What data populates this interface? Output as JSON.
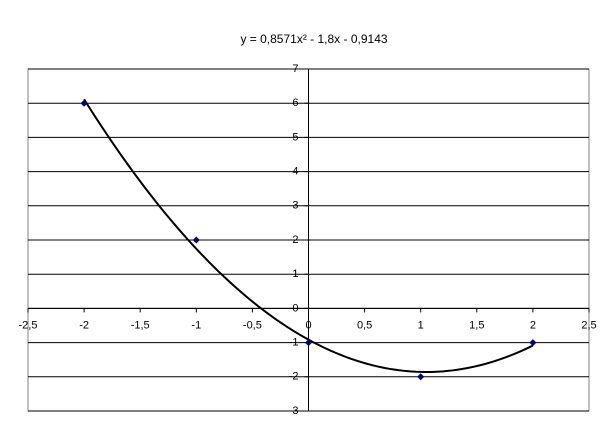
{
  "chart_data": {
    "type": "scatter",
    "title": "y = 0,8571x² - 1,8x - 0,9143",
    "x": [
      -2,
      -1,
      0,
      1,
      2
    ],
    "series": [
      {
        "color": "#000080",
        "values": [
          6,
          2,
          -1,
          -2,
          -1
        ]
      }
    ],
    "trendline": {
      "type": "polynomial",
      "order": 2,
      "color": "#000000"
    },
    "xlim": [
      -2.5,
      2.5
    ],
    "xticks": [
      {
        "value": -2.5,
        "label": "-2,5"
      },
      -2,
      {
        "value": -1.5,
        "label": "-1,5"
      },
      -1,
      {
        "value": -0.5,
        "label": "-0,5"
      },
      0,
      {
        "value": 0.5,
        "label": "0,5"
      },
      1,
      {
        "value": 1.5,
        "label": "1,5"
      },
      2,
      {
        "value": 2.5,
        "label": "2,5"
      }
    ],
    "ylim": [
      -3,
      7
    ],
    "yticks": [
      -3,
      -2,
      -1,
      0,
      1,
      2,
      3,
      4,
      5,
      6,
      7
    ],
    "grid": true
  }
}
